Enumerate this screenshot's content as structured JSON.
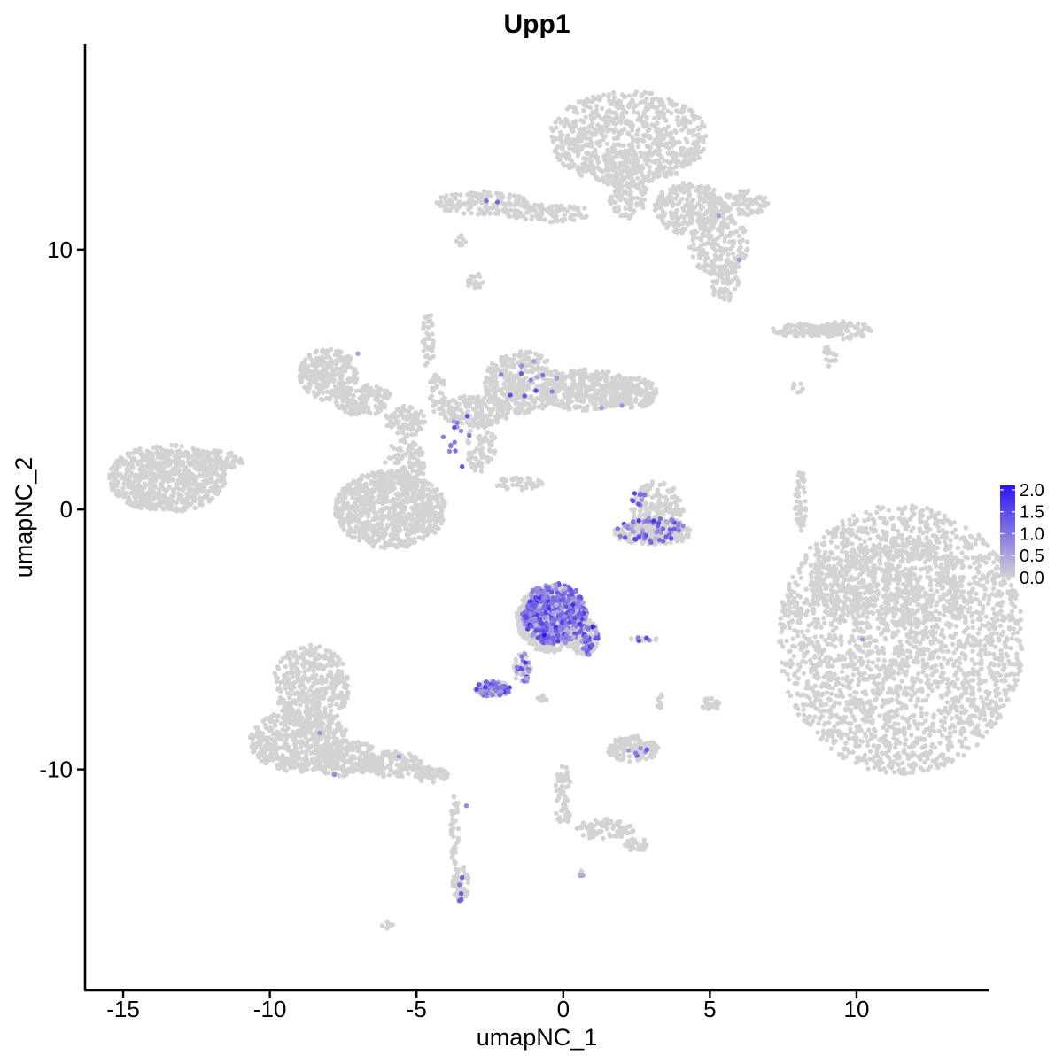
{
  "chart_data": {
    "type": "scatter",
    "title": "Upp1",
    "xlabel": "umapNC_1",
    "ylabel": "umapNC_2",
    "xlim": [
      -16.3,
      14.5
    ],
    "ylim": [
      -18.5,
      17.9
    ],
    "x_ticks": [
      -15,
      -10,
      -5,
      0,
      5,
      10
    ],
    "x_tick_labels": [
      "-15",
      "-10",
      "-5",
      "0",
      "5",
      "10"
    ],
    "y_ticks": [
      -10,
      0,
      10
    ],
    "y_tick_labels": [
      "-10",
      "0",
      "10"
    ],
    "grid": false,
    "legend": {
      "placement": "right",
      "title": "",
      "ticks": [
        0.0,
        0.5,
        1.0,
        1.5,
        2.0
      ],
      "tick_labels": [
        "0.0",
        "0.5",
        "1.0",
        "1.5",
        "2.0"
      ],
      "low_color": "#d3d3d3",
      "high_color": "#2e14f0",
      "range": [
        0,
        2.1
      ]
    },
    "colors": {
      "base": "#d3d3d3",
      "high": "#2e14f0"
    },
    "clusters": [
      {
        "cx": 11.5,
        "cy": -5.0,
        "rx": 4.2,
        "ry": 5.2,
        "n": 2400
      },
      {
        "cx": 11.0,
        "cy": -2.8,
        "rx": 2.6,
        "ry": 1.8,
        "n": 400
      },
      {
        "cx": 2.2,
        "cy": 14.3,
        "rx": 2.7,
        "ry": 1.8,
        "n": 750
      },
      {
        "cx": 2.2,
        "cy": 12.4,
        "rx": 0.7,
        "ry": 1.2,
        "n": 150
      },
      {
        "cx": 4.3,
        "cy": 11.6,
        "rx": 1.2,
        "ry": 1.0,
        "n": 260
      },
      {
        "cx": 5.3,
        "cy": 10.2,
        "rx": 1.0,
        "ry": 1.2,
        "n": 200
      },
      {
        "cx": 6.2,
        "cy": 11.8,
        "rx": 0.8,
        "ry": 0.5,
        "n": 80
      },
      {
        "cx": 5.5,
        "cy": 8.8,
        "rx": 0.5,
        "ry": 0.8,
        "n": 60
      },
      {
        "cx": -0.5,
        "cy": 11.4,
        "rx": 1.5,
        "ry": 0.35,
        "n": 110
      },
      {
        "cx": -2.8,
        "cy": 11.8,
        "rx": 1.6,
        "ry": 0.45,
        "n": 130
      },
      {
        "cx": -3.5,
        "cy": 10.4,
        "rx": 0.2,
        "ry": 0.3,
        "n": 8
      },
      {
        "cx": -3.0,
        "cy": 8.8,
        "rx": 0.3,
        "ry": 0.3,
        "n": 18
      },
      {
        "cx": -13.5,
        "cy": 1.2,
        "rx": 2.0,
        "ry": 1.3,
        "n": 700
      },
      {
        "cx": -11.8,
        "cy": 1.8,
        "rx": 0.9,
        "ry": 0.5,
        "n": 80
      },
      {
        "cx": -8.0,
        "cy": 5.2,
        "rx": 1.0,
        "ry": 1.0,
        "n": 260
      },
      {
        "cx": -6.8,
        "cy": 4.2,
        "rx": 1.0,
        "ry": 0.6,
        "n": 150
      },
      {
        "cx": -5.4,
        "cy": 3.4,
        "rx": 0.7,
        "ry": 0.6,
        "n": 100
      },
      {
        "cx": -5.4,
        "cy": 1.7,
        "rx": 0.7,
        "ry": 1.0,
        "n": 120
      },
      {
        "cx": -5.9,
        "cy": 0.0,
        "rx": 1.9,
        "ry": 1.5,
        "n": 800
      },
      {
        "cx": -4.6,
        "cy": 6.5,
        "rx": 0.2,
        "ry": 1.2,
        "n": 40
      },
      {
        "cx": -4.3,
        "cy": 4.5,
        "rx": 0.3,
        "ry": 0.8,
        "n": 40
      },
      {
        "cx": -3.0,
        "cy": 3.8,
        "rx": 1.2,
        "ry": 0.6,
        "n": 160
      },
      {
        "cx": -2.8,
        "cy": 2.4,
        "rx": 0.5,
        "ry": 1.0,
        "n": 70
      },
      {
        "cx": -1.4,
        "cy": 4.9,
        "rx": 1.3,
        "ry": 1.2,
        "n": 340
      },
      {
        "cx": 0.8,
        "cy": 4.6,
        "rx": 1.6,
        "ry": 0.8,
        "n": 360
      },
      {
        "cx": 2.4,
        "cy": 4.5,
        "rx": 0.8,
        "ry": 0.6,
        "n": 120
      },
      {
        "cx": -1.5,
        "cy": 1.0,
        "rx": 0.8,
        "ry": 0.25,
        "n": 40
      },
      {
        "cx": 3.2,
        "cy": -0.1,
        "rx": 0.9,
        "ry": 1.2,
        "n": 200
      },
      {
        "cx": 3.1,
        "cy": -0.9,
        "rx": 1.4,
        "ry": 0.45,
        "n": 160
      },
      {
        "cx": 8.3,
        "cy": 6.9,
        "rx": 1.2,
        "ry": 0.25,
        "n": 90
      },
      {
        "cx": 9.6,
        "cy": 6.9,
        "rx": 0.9,
        "ry": 0.35,
        "n": 80
      },
      {
        "cx": 9.1,
        "cy": 5.9,
        "rx": 0.3,
        "ry": 0.4,
        "n": 15
      },
      {
        "cx": 8.0,
        "cy": 4.7,
        "rx": 0.2,
        "ry": 0.2,
        "n": 8
      },
      {
        "cx": 8.1,
        "cy": 0.3,
        "rx": 0.2,
        "ry": 1.2,
        "n": 50
      },
      {
        "cx": 8.7,
        "cy": -2.8,
        "rx": 0.2,
        "ry": 0.4,
        "n": 10
      },
      {
        "cx": -8.6,
        "cy": -6.8,
        "rx": 1.3,
        "ry": 1.6,
        "n": 400
      },
      {
        "cx": -9.0,
        "cy": -8.9,
        "rx": 1.7,
        "ry": 1.2,
        "n": 500
      },
      {
        "cx": -7.4,
        "cy": -9.6,
        "rx": 1.2,
        "ry": 0.7,
        "n": 200
      },
      {
        "cx": -5.8,
        "cy": -9.8,
        "rx": 1.0,
        "ry": 0.5,
        "n": 150
      },
      {
        "cx": -4.5,
        "cy": -10.2,
        "rx": 0.6,
        "ry": 0.3,
        "n": 60
      },
      {
        "cx": -3.7,
        "cy": -12.3,
        "rx": 0.15,
        "ry": 1.5,
        "n": 40
      },
      {
        "cx": -3.5,
        "cy": -14.4,
        "rx": 0.3,
        "ry": 0.7,
        "n": 60
      },
      {
        "cx": -6.0,
        "cy": -16.0,
        "rx": 0.2,
        "ry": 0.12,
        "n": 10
      },
      {
        "cx": -0.4,
        "cy": -4.2,
        "rx": 1.2,
        "ry": 1.3,
        "n": 600
      },
      {
        "cx": 0.7,
        "cy": -4.9,
        "rx": 0.5,
        "ry": 0.7,
        "n": 130
      },
      {
        "cx": -1.4,
        "cy": -6.1,
        "rx": 0.3,
        "ry": 0.6,
        "n": 40
      },
      {
        "cx": -2.4,
        "cy": -6.9,
        "rx": 0.6,
        "ry": 0.3,
        "n": 90
      },
      {
        "cx": -0.8,
        "cy": -7.3,
        "rx": 0.3,
        "ry": 0.15,
        "n": 10
      },
      {
        "cx": 2.8,
        "cy": -5.0,
        "rx": 0.5,
        "ry": 0.1,
        "n": 12
      },
      {
        "cx": 5.0,
        "cy": -7.5,
        "rx": 0.4,
        "ry": 0.3,
        "n": 20
      },
      {
        "cx": 3.3,
        "cy": -7.4,
        "rx": 0.2,
        "ry": 0.3,
        "n": 10
      },
      {
        "cx": 2.4,
        "cy": -9.2,
        "rx": 0.9,
        "ry": 0.5,
        "n": 120
      },
      {
        "cx": 0.0,
        "cy": -11.0,
        "rx": 0.3,
        "ry": 1.2,
        "n": 60
      },
      {
        "cx": 1.4,
        "cy": -12.3,
        "rx": 1.0,
        "ry": 0.4,
        "n": 70
      },
      {
        "cx": 2.5,
        "cy": -12.9,
        "rx": 0.4,
        "ry": 0.25,
        "n": 30
      },
      {
        "cx": 0.6,
        "cy": -14.0,
        "rx": 0.1,
        "ry": 0.1,
        "n": 5
      }
    ],
    "expressing_clusters": [
      {
        "cx": -0.3,
        "cy": -4.0,
        "rx": 1.1,
        "ry": 1.2,
        "n": 420
      },
      {
        "cx": 0.9,
        "cy": -5.0,
        "rx": 0.3,
        "ry": 0.6,
        "n": 40
      },
      {
        "cx": -2.4,
        "cy": -6.9,
        "rx": 0.6,
        "ry": 0.3,
        "n": 60
      },
      {
        "cx": -1.4,
        "cy": -6.1,
        "rx": 0.3,
        "ry": 0.6,
        "n": 20
      },
      {
        "cx": 3.0,
        "cy": -0.8,
        "rx": 1.2,
        "ry": 0.5,
        "n": 60
      },
      {
        "cx": 2.6,
        "cy": 0.4,
        "rx": 0.3,
        "ry": 0.3,
        "n": 10
      },
      {
        "cx": -3.5,
        "cy": 2.7,
        "rx": 0.6,
        "ry": 1.2,
        "n": 14
      },
      {
        "cx": -1.3,
        "cy": 4.8,
        "rx": 1.2,
        "ry": 0.8,
        "n": 10
      },
      {
        "cx": 2.4,
        "cy": -9.2,
        "rx": 0.6,
        "ry": 0.3,
        "n": 6
      },
      {
        "cx": -3.5,
        "cy": -14.6,
        "rx": 0.2,
        "ry": 0.5,
        "n": 5
      },
      {
        "cx": -2.5,
        "cy": 11.8,
        "rx": 0.5,
        "ry": 0.1,
        "n": 2
      },
      {
        "cx": 0.6,
        "cy": -14.1,
        "rx": 0.1,
        "ry": 0.1,
        "n": 3
      },
      {
        "cx": 2.7,
        "cy": -5.0,
        "rx": 0.3,
        "ry": 0.1,
        "n": 4
      }
    ],
    "single_points": [
      {
        "x": 10.2,
        "y": -5.0,
        "v": 0.7
      },
      {
        "x": -8.3,
        "y": -8.6,
        "v": 0.7
      },
      {
        "x": -7.8,
        "y": -10.2,
        "v": 0.8
      },
      {
        "x": -5.6,
        "y": -9.5,
        "v": 0.6
      },
      {
        "x": -3.3,
        "y": -11.4,
        "v": 0.8
      },
      {
        "x": 5.3,
        "y": 11.3,
        "v": 0.6
      },
      {
        "x": 6.0,
        "y": 9.6,
        "v": 0.6
      },
      {
        "x": -7.0,
        "y": 6.0,
        "v": 0.6
      },
      {
        "x": 1.3,
        "y": 3.9,
        "v": 0.6
      },
      {
        "x": 2.0,
        "y": 4.0,
        "v": 0.7
      },
      {
        "x": -1.8,
        "y": 4.4,
        "v": 1.5
      },
      {
        "x": -1.0,
        "y": 5.7,
        "v": 0.6
      }
    ]
  }
}
